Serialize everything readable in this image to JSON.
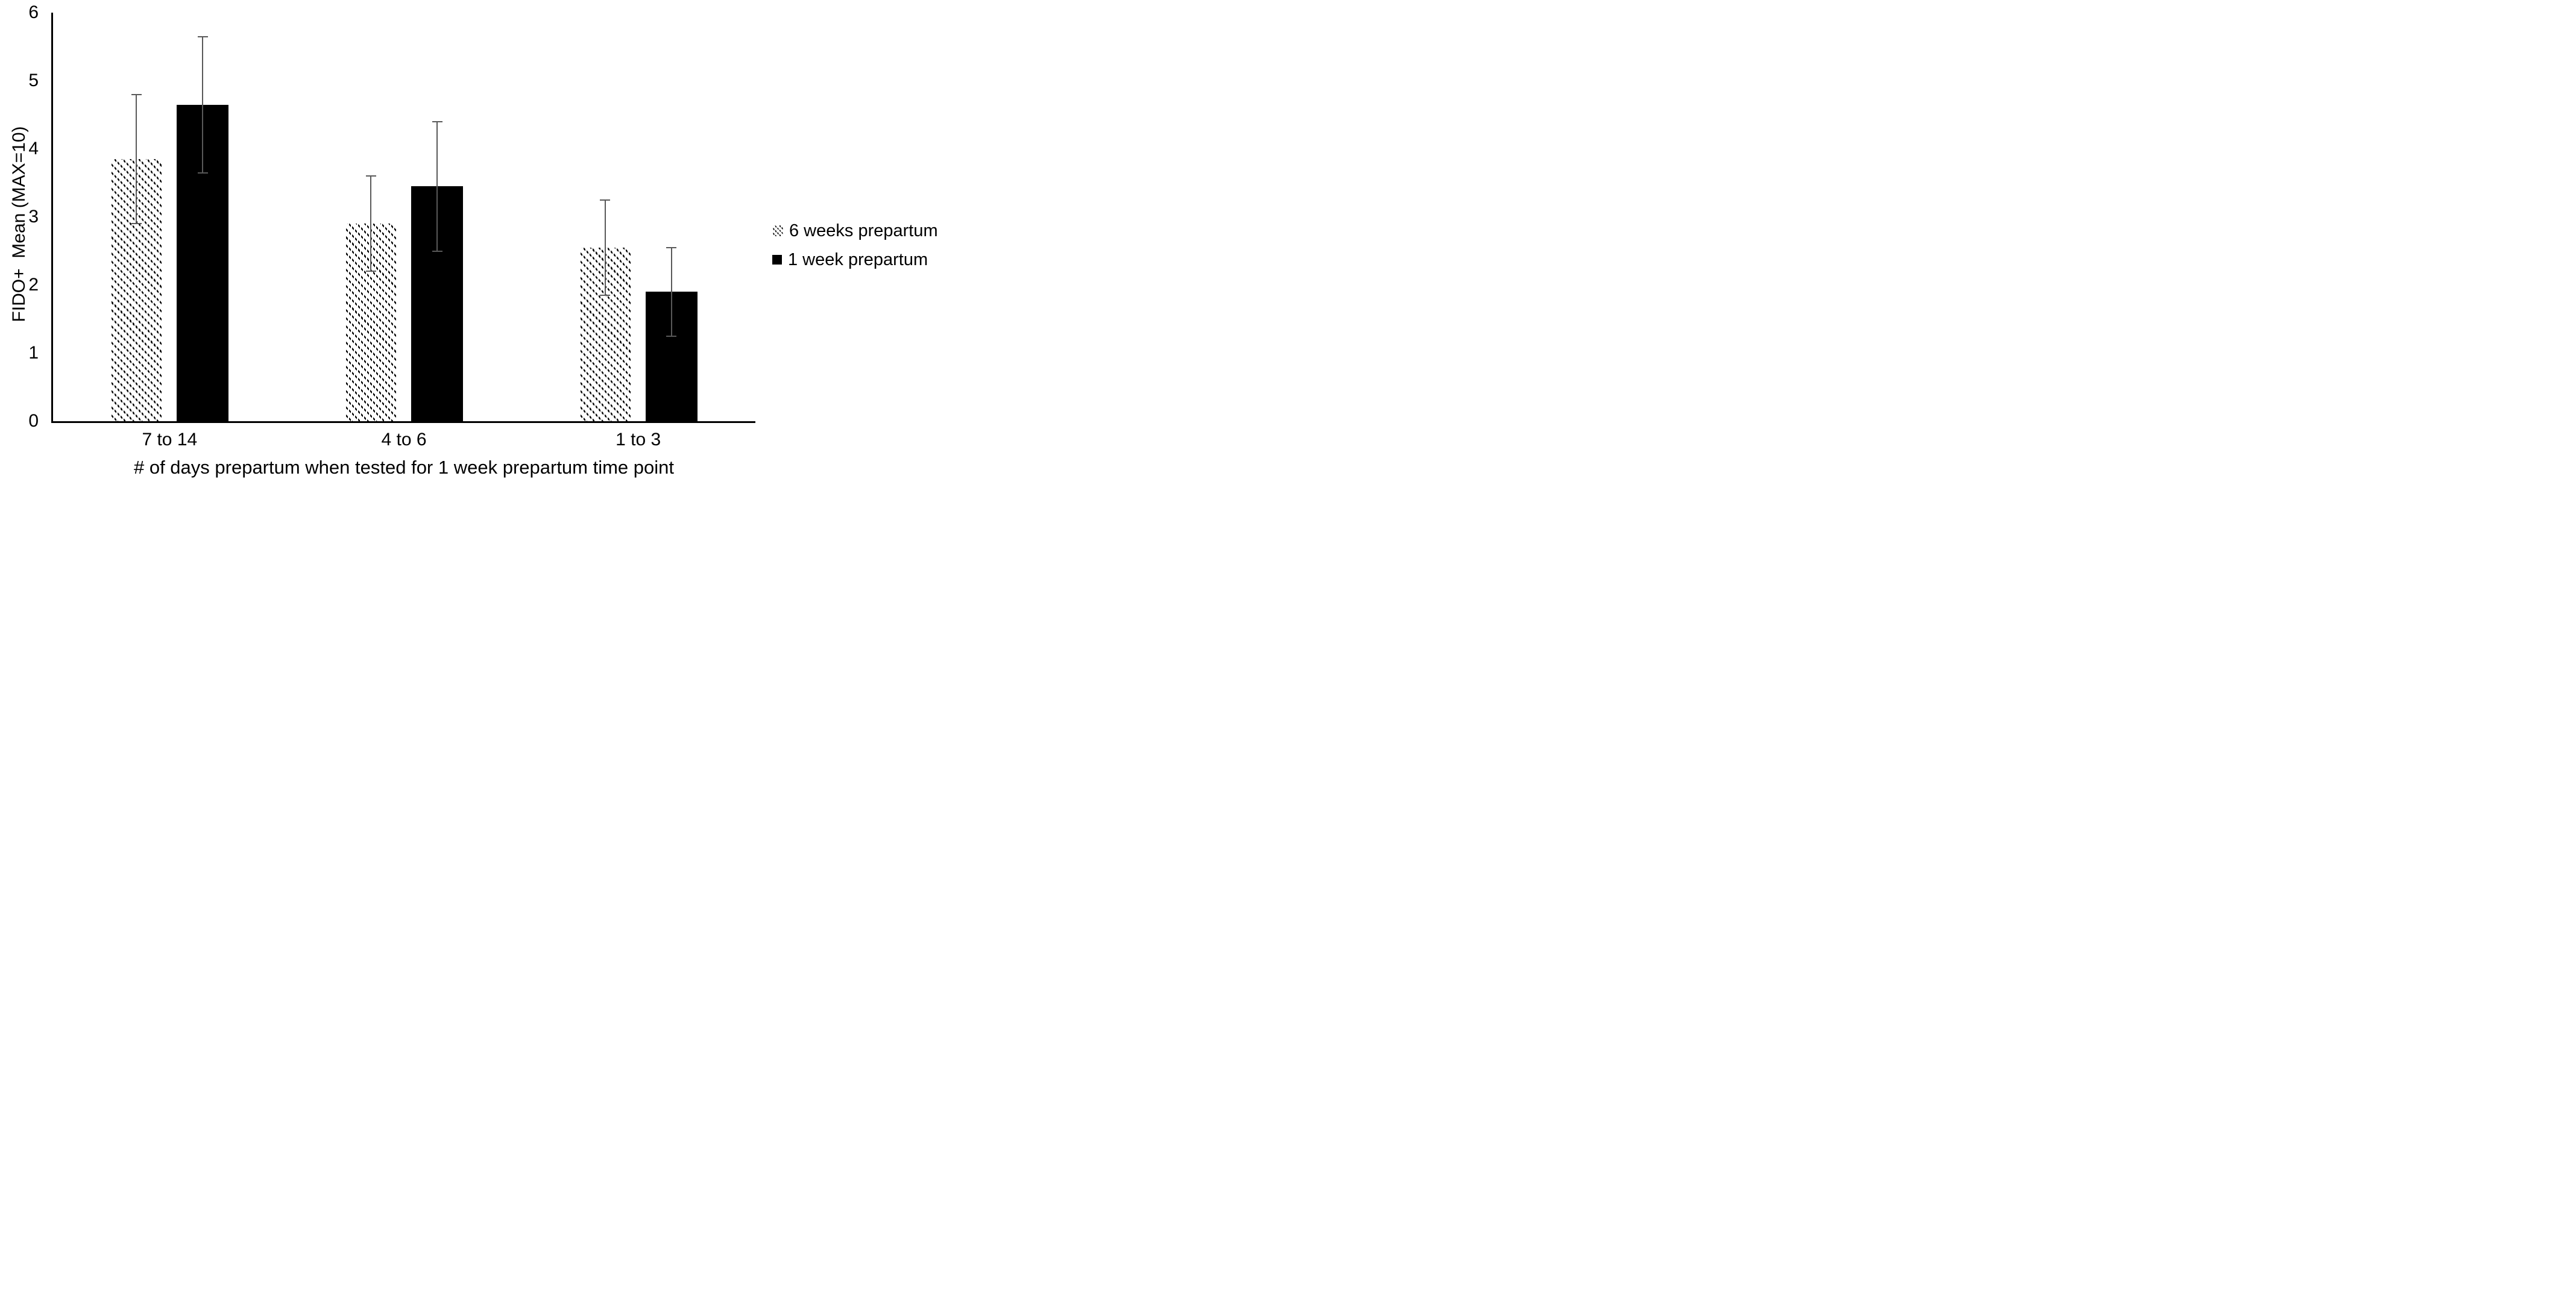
{
  "chart_data": {
    "type": "bar",
    "title": "",
    "categories": [
      "7 to 14",
      "4 to 6",
      "1 to 3"
    ],
    "series": [
      {
        "name": "6 weeks prepartum",
        "fill": "diagonal-hatch",
        "color": "#000000",
        "values": [
          3.85,
          2.9,
          2.55
        ],
        "errors": [
          0.95,
          0.7,
          0.7
        ]
      },
      {
        "name": "1 week prepartum",
        "fill": "solid",
        "color": "#000000",
        "values": [
          4.65,
          3.45,
          1.9
        ],
        "errors": [
          1.0,
          0.95,
          0.65
        ]
      }
    ],
    "xlabel": "# of days prepartum when tested for 1 week prepartum time point",
    "ylabel": "FIDO+  Mean (MAX=10)",
    "ylim": [
      0,
      6
    ],
    "yticks": [
      "0",
      "1",
      "2",
      "3",
      "4",
      "5",
      "6"
    ],
    "grid": false,
    "legend_position": "right",
    "error_bar_color": "#595959",
    "axis_color": "#000000",
    "background_color": "#ffffff"
  }
}
